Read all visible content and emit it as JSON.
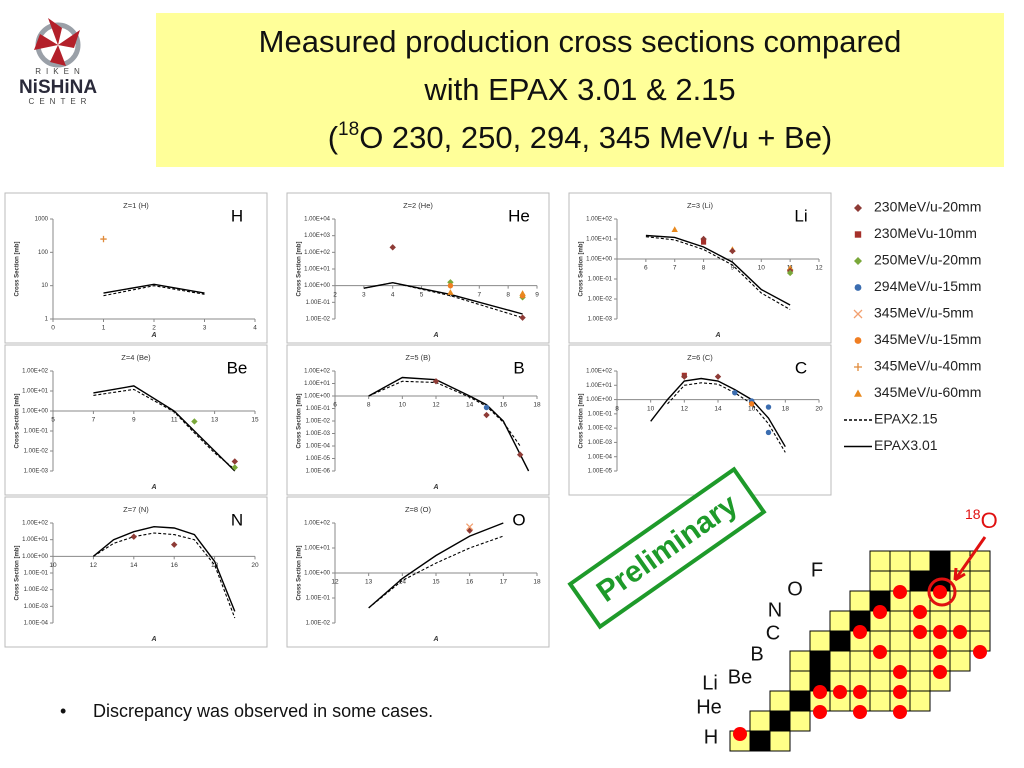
{
  "logo": {
    "top": "RIKEN",
    "middle": "NiSHiNA",
    "bottom": "CENTER"
  },
  "title_lines": [
    "Measured production cross sections compared",
    "with EPAX 3.01 & 2.15"
  ],
  "title_line3": {
    "open": "(",
    "mass": "18",
    "rest": "O 230, 250, 294, 345 MeV/u + Be)"
  },
  "legend": [
    {
      "name": "230MeV/u-20mm",
      "color": "#8e3b36",
      "marker": "diamond"
    },
    {
      "name": "230MeVu-10mm",
      "color": "#a5302a",
      "marker": "square"
    },
    {
      "name": "250MeV/u-20mm",
      "color": "#7aa83a",
      "marker": "diamond"
    },
    {
      "name": "294MeV/u-15mm",
      "color": "#3b6db0",
      "marker": "circle"
    },
    {
      "name": "345MeV/u-5mm",
      "color": "#f2a070",
      "marker": "x"
    },
    {
      "name": "345MeV/u-15mm",
      "color": "#f07e22",
      "marker": "circle"
    },
    {
      "name": "345MeV/u-40mm",
      "color": "#e08a3a",
      "marker": "plus"
    },
    {
      "name": "345MeV/u-60mm",
      "color": "#e8891e",
      "marker": "triangle"
    },
    {
      "name": "EPAX2.15",
      "color": "#000000",
      "marker": "dashed"
    },
    {
      "name": "EPAX3.01",
      "color": "#000000",
      "marker": "solid"
    }
  ],
  "stamp": "Preliminary",
  "bullet": "Discrepancy was observed in some cases.",
  "nuclide_chart": {
    "elements": [
      "H",
      "He",
      "Li",
      "Be",
      "B",
      "C",
      "N",
      "O",
      "F"
    ],
    "target_mass": "18",
    "target_symbol": "O"
  },
  "chart_data": [
    {
      "type": "line",
      "title": "Z=1 (H)",
      "label": "H",
      "xlabel": "A",
      "ylabel": "Cross Section [mb]",
      "log_y": true,
      "xlim": [
        0,
        4
      ],
      "xticks": [
        0,
        1,
        2,
        3,
        4
      ],
      "ylim": [
        1,
        1000
      ],
      "yticks": [
        1,
        10,
        100,
        1000
      ],
      "series": [
        {
          "name": "345MeV/u-40mm",
          "x": [
            1
          ],
          "values": [
            250
          ]
        },
        {
          "name": "EPAX2.15",
          "x": [
            1,
            2,
            3
          ],
          "values": [
            5,
            10,
            5.5
          ]
        },
        {
          "name": "EPAX3.01",
          "x": [
            1,
            2,
            3
          ],
          "values": [
            6,
            11,
            6
          ]
        }
      ]
    },
    {
      "type": "line",
      "title": "Z=2 (He)",
      "label": "He",
      "xlabel": "A",
      "ylabel": "Cross Section [mb]",
      "log_y": true,
      "xaxis_at": 1,
      "xlim": [
        2,
        9
      ],
      "xticks": [
        2,
        3,
        4,
        5,
        6,
        7,
        8,
        9
      ],
      "ylim": [
        0.01,
        10000
      ],
      "yticks": [
        {
          "value": 0.01,
          "label": "1.00E-02"
        },
        {
          "value": 0.1,
          "label": "1.00E-01"
        },
        {
          "value": 1,
          "label": "1.00E+00"
        },
        {
          "value": 10,
          "label": "1.00E+01"
        },
        {
          "value": 100,
          "label": "1.00E+02"
        },
        {
          "value": 1000,
          "label": "1.00E+03"
        },
        {
          "value": 10000,
          "label": "1.00E+04"
        }
      ],
      "series": [
        {
          "name": "230MeV/u-20mm",
          "x": [
            4,
            8.5
          ],
          "values": [
            200,
            0.012
          ]
        },
        {
          "name": "250MeV/u-20mm",
          "x": [
            6,
            8.5
          ],
          "values": [
            1.6,
            0.2
          ]
        },
        {
          "name": "345MeV/u-15mm",
          "x": [
            6,
            8.5
          ],
          "values": [
            1,
            0.25
          ]
        },
        {
          "name": "345MeV/u-60mm",
          "x": [
            6,
            8.5
          ],
          "values": [
            0.4,
            0.35
          ]
        },
        {
          "name": "EPAX2.15",
          "x": [
            3,
            4,
            6,
            8.5
          ],
          "values": [
            0.7,
            1.5,
            0.25,
            0.012
          ]
        },
        {
          "name": "EPAX3.01",
          "x": [
            3,
            4,
            6,
            8.5
          ],
          "values": [
            0.7,
            1.5,
            0.3,
            0.02
          ]
        }
      ]
    },
    {
      "type": "line",
      "title": "Z=3 (Li)",
      "label": "Li",
      "xlabel": "A",
      "ylabel": "Cross Section [mb]",
      "log_y": true,
      "xaxis_at": 1,
      "xlim": [
        5,
        12
      ],
      "xticks": [
        6,
        7,
        8,
        9,
        10,
        11,
        12
      ],
      "ylim": [
        0.001,
        100
      ],
      "yticks": [
        {
          "value": 0.001,
          "label": "1.00E-03"
        },
        {
          "value": 0.01,
          "label": "1.00E-02"
        },
        {
          "value": 0.1,
          "label": "1.00E-01"
        },
        {
          "value": 1,
          "label": "1.00E+00"
        },
        {
          "value": 10,
          "label": "1.00E+01"
        },
        {
          "value": 100,
          "label": "1.00E+02"
        }
      ],
      "series": [
        {
          "name": "345MeV/u-60mm",
          "x": [
            7,
            9,
            11
          ],
          "values": [
            30,
            3,
            0.35
          ]
        },
        {
          "name": "230MeV/u-20mm",
          "x": [
            8,
            9,
            11
          ],
          "values": [
            10,
            2.5,
            0.25
          ]
        },
        {
          "name": "230MeVu-10mm",
          "x": [
            8
          ],
          "values": [
            7
          ]
        },
        {
          "name": "250MeV/u-20mm",
          "x": [
            11
          ],
          "values": [
            0.2
          ]
        },
        {
          "name": "EPAX2.15",
          "x": [
            6,
            7,
            8,
            9,
            10,
            11
          ],
          "values": [
            13,
            9,
            3,
            0.5,
            0.02,
            0.003
          ]
        },
        {
          "name": "EPAX3.01",
          "x": [
            6,
            7,
            8,
            9,
            10,
            11
          ],
          "values": [
            15,
            12,
            4,
            0.7,
            0.03,
            0.005
          ]
        }
      ]
    },
    {
      "type": "line",
      "title": "Z=4 (Be)",
      "label": "Be",
      "xlabel": "A",
      "ylabel": "Cross Section [mb]",
      "log_y": true,
      "xaxis_at": 1,
      "xlim": [
        5,
        15
      ],
      "xticks": [
        5,
        7,
        9,
        11,
        13,
        15
      ],
      "ylim": [
        0.001,
        100
      ],
      "yticks": [
        {
          "value": 0.001,
          "label": "1.00E-03"
        },
        {
          "value": 0.01,
          "label": "1.00E-02"
        },
        {
          "value": 0.1,
          "label": "1.00E-01"
        },
        {
          "value": 1,
          "label": "1.00E+00"
        },
        {
          "value": 10,
          "label": "1.00E+01"
        },
        {
          "value": 100,
          "label": "1.00E+02"
        }
      ],
      "series": [
        {
          "name": "250MeV/u-20mm",
          "x": [
            12,
            14
          ],
          "values": [
            0.3,
            0.0015
          ]
        },
        {
          "name": "230MeV/u-20mm",
          "x": [
            14
          ],
          "values": [
            0.003
          ]
        },
        {
          "name": "EPAX2.15",
          "x": [
            7,
            9,
            11,
            12,
            13,
            14
          ],
          "values": [
            6,
            12,
            0.9,
            0.08,
            0.008,
            0.0012
          ]
        },
        {
          "name": "EPAX3.01",
          "x": [
            7,
            9,
            11,
            12,
            13,
            14
          ],
          "values": [
            8,
            18,
            1,
            0.1,
            0.01,
            0.001
          ]
        }
      ]
    },
    {
      "type": "line",
      "title": "Z=5 (B)",
      "label": "B",
      "xlabel": "A",
      "ylabel": "Cross Section [mb]",
      "log_y": true,
      "xaxis_at": 1,
      "xlim": [
        6,
        18
      ],
      "xticks": [
        6,
        8,
        10,
        12,
        14,
        16,
        18
      ],
      "ylim": [
        1e-06,
        100
      ],
      "yticks": [
        {
          "value": 1e-06,
          "label": "1.00E-06"
        },
        {
          "value": 1e-05,
          "label": "1.00E-05"
        },
        {
          "value": 0.0001,
          "label": "1.00E-04"
        },
        {
          "value": 0.001,
          "label": "1.00E-03"
        },
        {
          "value": 0.01,
          "label": "1.00E-02"
        },
        {
          "value": 0.1,
          "label": "1.00E-01"
        },
        {
          "value": 1,
          "label": "1.00E+00"
        },
        {
          "value": 10,
          "label": "1.00E+01"
        },
        {
          "value": 100,
          "label": "1.00E+02"
        }
      ],
      "series": [
        {
          "name": "230MeV/u-20mm",
          "x": [
            12,
            15,
            17
          ],
          "values": [
            15,
            0.03,
            2e-05
          ]
        },
        {
          "name": "294MeV/u-15mm",
          "x": [
            15
          ],
          "values": [
            0.12
          ]
        },
        {
          "name": "EPAX2.15",
          "x": [
            8,
            10,
            12,
            14,
            15,
            16,
            17
          ],
          "values": [
            1,
            15,
            12,
            0.8,
            0.15,
            0.008,
            0.0001
          ]
        },
        {
          "name": "EPAX3.01",
          "x": [
            8,
            10,
            12,
            14,
            15,
            16,
            17.5
          ],
          "values": [
            1,
            30,
            20,
            1,
            0.2,
            0.01,
            1e-06
          ]
        }
      ]
    },
    {
      "type": "line",
      "title": "Z=6 (C)",
      "label": "C",
      "xlabel": "A",
      "ylabel": "Cross Section [mb]",
      "log_y": true,
      "xaxis_at": 1,
      "xlim": [
        8,
        20
      ],
      "xticks": [
        8,
        10,
        12,
        14,
        16,
        18,
        20
      ],
      "ylim": [
        1e-05,
        100
      ],
      "yticks": [
        {
          "value": 1e-05,
          "label": "1.00E-05"
        },
        {
          "value": 0.0001,
          "label": "1.00E-04"
        },
        {
          "value": 0.001,
          "label": "1.00E-03"
        },
        {
          "value": 0.01,
          "label": "1.00E-02"
        },
        {
          "value": 0.1,
          "label": "1.00E-01"
        },
        {
          "value": 1,
          "label": "1.00E+00"
        },
        {
          "value": 10,
          "label": "1.00E+01"
        },
        {
          "value": 100,
          "label": "1.00E+02"
        }
      ],
      "series": [
        {
          "name": "230MeVu-10mm",
          "x": [
            12
          ],
          "values": [
            50
          ]
        },
        {
          "name": "230MeV/u-20mm",
          "x": [
            12,
            14
          ],
          "values": [
            40,
            40
          ]
        },
        {
          "name": "294MeV/u-15mm",
          "x": [
            15,
            16,
            17,
            17
          ],
          "values": [
            3,
            0.8,
            0.3,
            0.005
          ]
        },
        {
          "name": "345MeV/u-15mm",
          "x": [
            16
          ],
          "values": [
            0.5
          ]
        },
        {
          "name": "EPAX2.15",
          "x": [
            11,
            12,
            13,
            14,
            15,
            16,
            17,
            18
          ],
          "values": [
            0.5,
            10,
            15,
            12,
            3,
            0.5,
            0.02,
            0.0002
          ]
        },
        {
          "name": "EPAX3.01",
          "x": [
            10,
            11,
            12,
            13,
            14,
            15,
            16,
            17,
            18
          ],
          "values": [
            0.03,
            1,
            20,
            30,
            20,
            5,
            1,
            0.05,
            0.0005
          ]
        }
      ]
    },
    {
      "type": "line",
      "title": "Z=7 (N)",
      "label": "N",
      "xlabel": "A",
      "ylabel": "Cross Section [mb]",
      "log_y": true,
      "xaxis_at": 1,
      "xlim": [
        10,
        20
      ],
      "xticks": [
        10,
        12,
        14,
        16,
        18,
        20
      ],
      "ylim": [
        0.0001,
        100
      ],
      "yticks": [
        {
          "value": 0.0001,
          "label": "1.00E-04"
        },
        {
          "value": 0.001,
          "label": "1.00E-03"
        },
        {
          "value": 0.01,
          "label": "1.00E-02"
        },
        {
          "value": 0.1,
          "label": "1.00E-01"
        },
        {
          "value": 1,
          "label": "1.00E+00"
        },
        {
          "value": 10,
          "label": "1.00E+01"
        },
        {
          "value": 100,
          "label": "1.00E+02"
        }
      ],
      "series": [
        {
          "name": "230MeV/u-20mm",
          "x": [
            14,
            16
          ],
          "values": [
            15,
            5
          ]
        },
        {
          "name": "EPAX2.15",
          "x": [
            12,
            13,
            14,
            15,
            16,
            17,
            18,
            19
          ],
          "values": [
            1,
            6,
            15,
            25,
            20,
            10,
            0.3,
            0.0002
          ]
        },
        {
          "name": "EPAX3.01",
          "x": [
            12,
            13,
            14,
            15,
            16,
            17,
            18,
            19
          ],
          "values": [
            1,
            10,
            30,
            60,
            50,
            20,
            0.5,
            0.0005
          ]
        }
      ]
    },
    {
      "type": "line",
      "title": "Z=8 (O)",
      "label": "O",
      "xlabel": "A",
      "ylabel": "Cross Section [mb]",
      "log_y": true,
      "xaxis_at": 1,
      "xlim": [
        12,
        18
      ],
      "xticks": [
        12,
        13,
        14,
        15,
        16,
        17,
        18
      ],
      "ylim": [
        0.01,
        100
      ],
      "yticks": [
        {
          "value": 0.01,
          "label": "1.00E-02"
        },
        {
          "value": 0.1,
          "label": "1.00E-01"
        },
        {
          "value": 1,
          "label": "1.00E+00"
        },
        {
          "value": 10,
          "label": "1.00E+01"
        },
        {
          "value": 100,
          "label": "1.00E+02"
        }
      ],
      "series": [
        {
          "name": "230MeV/u-20mm",
          "x": [
            16
          ],
          "values": [
            50
          ]
        },
        {
          "name": "345MeV/u-5mm",
          "x": [
            16
          ],
          "values": [
            70
          ]
        },
        {
          "name": "EPAX2.15",
          "x": [
            13,
            14,
            15,
            16,
            17
          ],
          "values": [
            0.04,
            0.5,
            2.5,
            10,
            30
          ]
        },
        {
          "name": "EPAX3.01",
          "x": [
            13,
            14,
            15,
            16,
            17
          ],
          "values": [
            0.04,
            0.6,
            5,
            30,
            100
          ]
        }
      ]
    }
  ]
}
